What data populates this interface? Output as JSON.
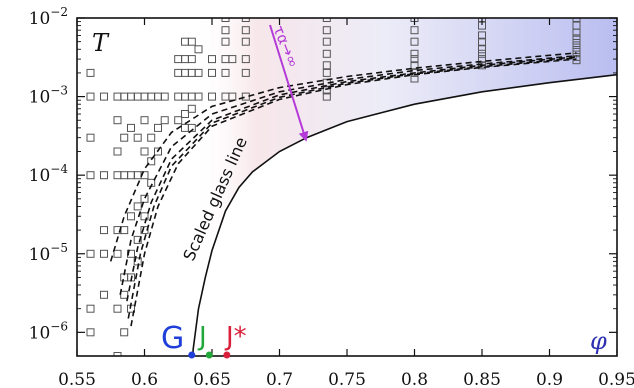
{
  "chart_data": {
    "type": "scatter",
    "x_scale": "linear",
    "y_scale": "log",
    "xlim": [
      0.55,
      0.95
    ],
    "ylim": [
      5e-07,
      0.01
    ],
    "x_ticks": [
      0.55,
      0.6,
      0.65,
      0.7,
      0.75,
      0.8,
      0.85,
      0.9,
      0.95
    ],
    "x_tick_labels": [
      "0.55",
      "0.6",
      "0.65",
      "0.7",
      "0.75",
      "0.8",
      "0.85",
      "0.9",
      "0.95"
    ],
    "y_ticks": [
      1e-06,
      1e-05,
      0.0001,
      0.001,
      0.01
    ],
    "y_tick_base": "10",
    "y_tick_exponents": [
      "−6",
      "−5",
      "−4",
      "−3",
      "−2"
    ],
    "ylabel": "T",
    "xlabel": "φ",
    "grid": false,
    "annotations": {
      "glass_line": "Scaled glass line",
      "arrow": "τα→∞",
      "G": "G",
      "J": "J",
      "Jstar": "J*"
    },
    "marker_points": [
      {
        "label": "G",
        "x": 0.635,
        "color": "#1f3fd8"
      },
      {
        "label": "J",
        "x": 0.648,
        "color": "#22a83a"
      },
      {
        "label": "J*",
        "x": 0.661,
        "color": "#d8203a"
      }
    ],
    "glass_line": {
      "x": [
        0.636,
        0.64,
        0.645,
        0.65,
        0.66,
        0.67,
        0.68,
        0.7,
        0.72,
        0.75,
        0.8,
        0.85,
        0.9,
        0.95
      ],
      "y": [
        6e-07,
        2e-06,
        5e-06,
        1.1e-05,
        3.5e-05,
        7e-05,
        0.00011,
        0.0002,
        0.0003,
        0.00048,
        0.0008,
        0.00115,
        0.0015,
        0.0019
      ]
    },
    "dashed_fits": [
      {
        "x": [
          0.575,
          0.585,
          0.6,
          0.62,
          0.65,
          0.7,
          0.75,
          0.8,
          0.85,
          0.92
        ],
        "y": [
          8e-06,
          3e-05,
          0.00012,
          0.00035,
          0.00075,
          0.0013,
          0.0018,
          0.0023,
          0.0028,
          0.0036
        ]
      },
      {
        "x": [
          0.582,
          0.59,
          0.6,
          0.62,
          0.65,
          0.7,
          0.75,
          0.8,
          0.85,
          0.92
        ],
        "y": [
          3e-06,
          1.5e-05,
          5e-05,
          0.00023,
          0.0006,
          0.00115,
          0.00165,
          0.00215,
          0.0026,
          0.0033
        ]
      },
      {
        "x": [
          0.587,
          0.595,
          0.605,
          0.62,
          0.65,
          0.7,
          0.75,
          0.8,
          0.85,
          0.92
        ],
        "y": [
          2.5e-06,
          1.2e-05,
          4.5e-05,
          0.00016,
          0.0005,
          0.00105,
          0.00155,
          0.002,
          0.0025,
          0.0032
        ]
      },
      {
        "x": [
          0.588,
          0.597,
          0.607,
          0.62,
          0.65,
          0.7,
          0.75,
          0.8,
          0.85,
          0.92
        ],
        "y": [
          1.5e-06,
          1e-05,
          4e-05,
          0.00013,
          0.00046,
          0.00098,
          0.00148,
          0.00195,
          0.0024,
          0.0031
        ]
      },
      {
        "x": [
          0.59,
          0.6,
          0.61,
          0.625,
          0.65,
          0.7,
          0.75,
          0.8,
          0.85,
          0.92
        ],
        "y": [
          1.2e-06,
          1e-05,
          4e-05,
          0.00014,
          0.00042,
          0.00092,
          0.00142,
          0.0019,
          0.00235,
          0.003
        ]
      }
    ],
    "series": [
      {
        "x": 0.56,
        "y": [
          0.002,
          0.001,
          0.0003,
          0.0001,
          1e-05,
          2e-06,
          1e-06
        ]
      },
      {
        "x": 0.57,
        "y": [
          0.001,
          0.0001,
          2e-05,
          1e-05,
          3e-06
        ]
      },
      {
        "x": 0.58,
        "y": [
          0.001,
          0.0005,
          0.0002,
          0.0001,
          2e-05,
          1e-05,
          2e-06,
          5e-07
        ]
      },
      {
        "x": 0.585,
        "y": [
          0.001,
          0.0003,
          0.0001,
          2e-05,
          5e-06,
          3e-06,
          1e-06
        ]
      },
      {
        "x": 0.59,
        "y": [
          0.001,
          0.0004,
          0.0001,
          3e-05,
          1e-05,
          5e-06,
          2e-06
        ]
      },
      {
        "x": 0.595,
        "y": [
          0.001,
          0.0003,
          0.0001,
          4e-05,
          1.5e-05,
          8e-06
        ]
      },
      {
        "x": 0.6,
        "y": [
          0.001,
          0.0005,
          0.0002,
          0.0001,
          5e-05,
          3e-05,
          2e-05
        ]
      },
      {
        "x": 0.605,
        "y": [
          0.001,
          0.0003,
          0.00015,
          8e-05
        ]
      },
      {
        "x": 0.61,
        "y": [
          0.001,
          0.0004,
          0.0002
        ]
      },
      {
        "x": 0.615,
        "y": [
          0.001,
          0.0005
        ]
      },
      {
        "x": 0.625,
        "y": [
          0.003,
          0.002,
          0.001,
          0.0005
        ]
      },
      {
        "x": 0.63,
        "y": [
          0.005,
          0.003,
          0.002,
          0.001,
          0.0006,
          0.0004
        ]
      },
      {
        "x": 0.635,
        "y": [
          0.005,
          0.003,
          0.002,
          0.001,
          0.0007,
          0.0004
        ]
      },
      {
        "x": 0.64,
        "y": [
          0.004,
          0.002,
          0.001
        ]
      },
      {
        "x": 0.65,
        "y": [
          0.003,
          0.002,
          0.001
        ]
      },
      {
        "x": 0.66,
        "y": [
          0.01,
          0.007,
          0.005,
          0.003,
          0.002,
          0.001
        ]
      },
      {
        "x": 0.665,
        "y": [
          0.003,
          0.001
        ]
      },
      {
        "x": 0.675,
        "y": [
          0.01,
          0.007,
          0.005,
          0.003,
          0.002,
          0.001
        ]
      },
      {
        "x": 0.735,
        "y": [
          0.01,
          0.007,
          0.005,
          0.0035,
          0.0025,
          0.002,
          0.0015,
          0.0012,
          0.001
        ]
      },
      {
        "x": 0.8,
        "y": [
          0.01,
          0.007,
          0.005,
          0.0035,
          0.003,
          0.0025,
          0.002,
          0.0017
        ]
      },
      {
        "x": 0.85,
        "y": [
          0.01,
          0.008,
          0.006,
          0.005,
          0.004,
          0.0035,
          0.003,
          0.0025
        ]
      },
      {
        "x": 0.92,
        "y": [
          0.01,
          0.008,
          0.0065,
          0.0055,
          0.0048,
          0.0042,
          0.0037,
          0.0032,
          0.0029
        ]
      }
    ],
    "colors": {
      "glass_line": "#111111",
      "dashed": "#111111",
      "markers": "#555555",
      "arrow": "#b43ad8",
      "fill_blue": "#7d86e0",
      "fill_pink": "#f3d6dc"
    }
  }
}
